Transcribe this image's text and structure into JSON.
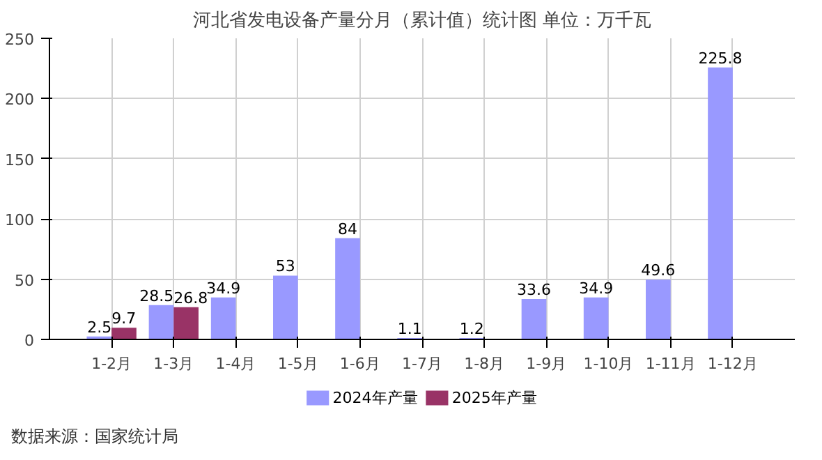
{
  "chart_data": {
    "type": "bar",
    "title": "河北省发电设备产量分月（累计值）统计图 单位：万千瓦",
    "categories": [
      "1-2月",
      "1-3月",
      "1-4月",
      "1-5月",
      "1-6月",
      "1-7月",
      "1-8月",
      "1-9月",
      "1-10月",
      "1-11月",
      "1-12月"
    ],
    "series": [
      {
        "name": "2024年产量",
        "color": "#9999ff",
        "values": [
          2.5,
          28.5,
          34.9,
          53,
          84,
          1.1,
          1.2,
          33.6,
          34.9,
          49.6,
          225.8
        ]
      },
      {
        "name": "2025年产量",
        "color": "#993366",
        "values": [
          9.7,
          26.8,
          null,
          null,
          null,
          null,
          null,
          null,
          null,
          null,
          null
        ]
      }
    ],
    "ylim": [
      0,
      250
    ],
    "yticks": [
      0,
      50,
      100,
      150,
      200,
      250
    ],
    "grid": true,
    "legend": "bottom",
    "data_labels": true,
    "annotations": [
      "数据来源：国家统计局"
    ]
  }
}
